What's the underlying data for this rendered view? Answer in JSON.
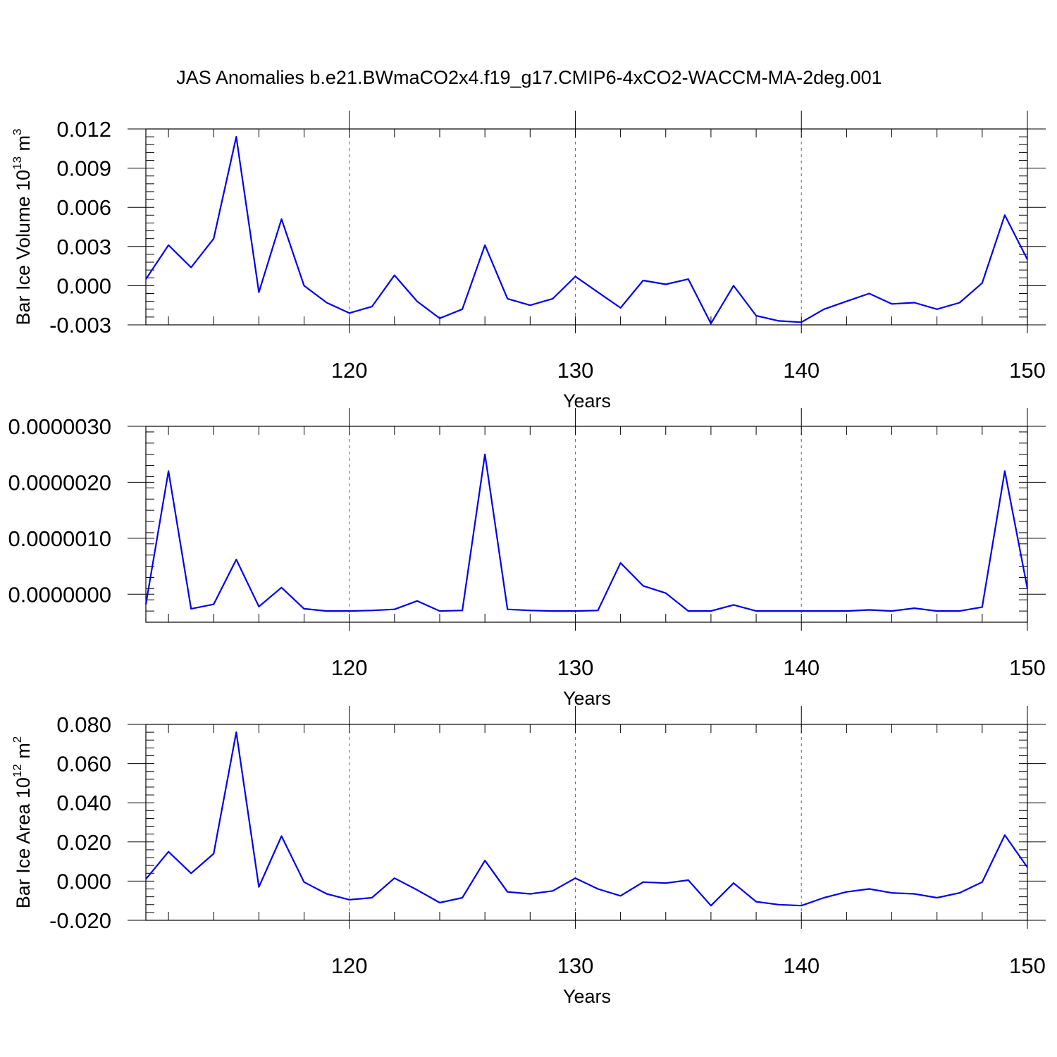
{
  "figure": {
    "title": "JAS Anomalies b.e21.BWmaCO2x4.f19_g17.CMIP6-4xCO2-WACCM-MA-2deg.001",
    "line_color": "#0000ee"
  },
  "chart_data": [
    {
      "type": "line",
      "title": "",
      "xlabel": "Years",
      "ylabel": "Bar Ice Volume 10",
      "ylabel_exponent": "13",
      "ylabel_unit": " m",
      "ylabel_unit_exponent": "3",
      "xlim": [
        111,
        150
      ],
      "ylim": [
        -0.003,
        0.012
      ],
      "xticks": [
        120,
        130,
        140,
        150
      ],
      "xtick_labels": [
        "120",
        "130",
        "140",
        "150"
      ],
      "yticks": [
        -0.003,
        0,
        0.003,
        0.006,
        0.009,
        0.012
      ],
      "ytick_labels": [
        "-0.003",
        "0.000",
        "0.003",
        "0.006",
        "0.009",
        "0.012"
      ],
      "grid": "dashed vertical at major x ticks",
      "x": [
        111,
        112,
        113,
        114,
        115,
        116,
        117,
        118,
        119,
        120,
        121,
        122,
        123,
        124,
        125,
        126,
        127,
        128,
        129,
        130,
        131,
        132,
        133,
        134,
        135,
        136,
        137,
        138,
        139,
        140,
        141,
        142,
        143,
        144,
        145,
        146,
        147,
        148,
        149,
        150
      ],
      "series": [
        {
          "values": [
            0.0005,
            0.0031,
            0.0014,
            0.0036,
            0.0114,
            -0.0005,
            0.0051,
            0.0,
            -0.0013,
            -0.0021,
            -0.0016,
            0.0008,
            -0.0012,
            -0.0025,
            -0.0018,
            0.0031,
            -0.001,
            -0.0015,
            -0.001,
            0.0007,
            -0.0005,
            -0.0017,
            0.0004,
            0.0001,
            0.0005,
            -0.0029,
            0.0,
            -0.0023,
            -0.0027,
            -0.0028,
            -0.0018,
            -0.0012,
            -0.0006,
            -0.0014,
            -0.0013,
            -0.0018,
            -0.0013,
            0.0002,
            0.0054,
            0.002
          ]
        }
      ]
    },
    {
      "type": "line",
      "title": "",
      "xlabel": "Years",
      "ylabel": "",
      "xlim": [
        111,
        150
      ],
      "ylim": [
        -5e-07,
        3e-06
      ],
      "xticks": [
        120,
        130,
        140,
        150
      ],
      "xtick_labels": [
        "120",
        "130",
        "140",
        "150"
      ],
      "yticks": [
        0,
        1e-06,
        2e-06,
        3e-06
      ],
      "ytick_labels": [
        "0.0000000",
        "0.0000010",
        "0.0000020",
        "0.0000030"
      ],
      "grid": "dashed vertical at major x ticks",
      "x": [
        111,
        112,
        113,
        114,
        115,
        116,
        117,
        118,
        119,
        120,
        121,
        122,
        123,
        124,
        125,
        126,
        127,
        128,
        129,
        130,
        131,
        132,
        133,
        134,
        135,
        136,
        137,
        138,
        139,
        140,
        141,
        142,
        143,
        144,
        145,
        146,
        147,
        148,
        149,
        150
      ],
      "series": [
        {
          "values": [
            -1.8e-07,
            2.2e-06,
            -2.6e-07,
            -1.8e-07,
            6.2e-07,
            -2.2e-07,
            1.2e-07,
            -2.6e-07,
            -3e-07,
            -3e-07,
            -2.9e-07,
            -2.7e-07,
            -1.2e-07,
            -3e-07,
            -2.9e-07,
            2.5e-06,
            -2.7e-07,
            -2.9e-07,
            -3e-07,
            -3e-07,
            -2.9e-07,
            5.6e-07,
            1.5e-07,
            2e-08,
            -3e-07,
            -3e-07,
            -1.9e-07,
            -3e-07,
            -3e-07,
            -3e-07,
            -3e-07,
            -3e-07,
            -2.8e-07,
            -3e-07,
            -2.5e-07,
            -3e-07,
            -3e-07,
            -2.3e-07,
            2.2e-06,
            1e-07
          ]
        }
      ]
    },
    {
      "type": "line",
      "title": "",
      "xlabel": "Years",
      "ylabel": "Bar Ice Area 10",
      "ylabel_exponent": "12",
      "ylabel_unit": " m",
      "ylabel_unit_exponent": "2",
      "xlim": [
        111,
        150
      ],
      "ylim": [
        -0.02,
        0.08
      ],
      "xticks": [
        120,
        130,
        140,
        150
      ],
      "xtick_labels": [
        "120",
        "130",
        "140",
        "150"
      ],
      "yticks": [
        -0.02,
        0,
        0.02,
        0.04,
        0.06,
        0.08
      ],
      "ytick_labels": [
        "-0.020",
        "0.000",
        "0.020",
        "0.040",
        "0.060",
        "0.080"
      ],
      "grid": "dashed vertical at major x ticks",
      "x": [
        111,
        112,
        113,
        114,
        115,
        116,
        117,
        118,
        119,
        120,
        121,
        122,
        123,
        124,
        125,
        126,
        127,
        128,
        129,
        130,
        131,
        132,
        133,
        134,
        135,
        136,
        137,
        138,
        139,
        140,
        141,
        142,
        143,
        144,
        145,
        146,
        147,
        148,
        149,
        150
      ],
      "series": [
        {
          "values": [
            0.001,
            0.015,
            0.004,
            0.014,
            0.076,
            -0.003,
            0.023,
            -0.0005,
            -0.0065,
            -0.0095,
            -0.0085,
            0.0015,
            -0.0045,
            -0.011,
            -0.0085,
            0.0105,
            -0.0055,
            -0.0065,
            -0.005,
            0.0015,
            -0.004,
            -0.0075,
            -0.0005,
            -0.001,
            0.0005,
            -0.0125,
            -0.001,
            -0.0105,
            -0.012,
            -0.0125,
            -0.0085,
            -0.0055,
            -0.004,
            -0.006,
            -0.0065,
            -0.0085,
            -0.006,
            -0.0005,
            0.0235,
            0.007
          ]
        }
      ]
    }
  ]
}
